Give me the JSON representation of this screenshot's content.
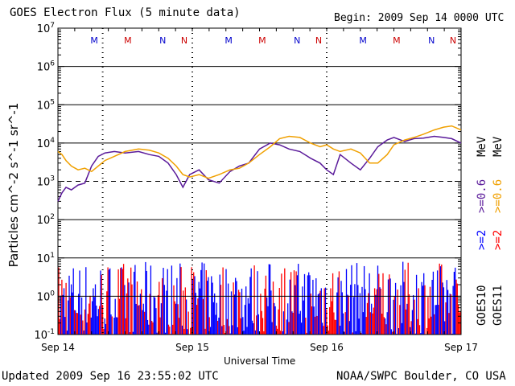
{
  "header": {
    "title": "GOES Electron Flux (5 minute data)",
    "begin": "Begin: 2009 Sep 14 0000 UTC"
  },
  "footer": {
    "updated": "Updated 2009 Sep 16 23:55:02 UTC",
    "source": "NOAA/SWPC Boulder, CO USA"
  },
  "colors": {
    "goes10_2mev": "#0000ff",
    "goes11_2mev": "#ff0000",
    "goes10_06mev": "#5a1a9a",
    "goes11_06mev": "#f0a000",
    "midnight_blue": "#0000cc",
    "midnight_red": "#cc0000"
  },
  "chart_data": {
    "type": "line",
    "title": "GOES Electron Flux (5 minute data)",
    "xlabel": "Universal Time",
    "ylabel": "Particles cm^-2 s^-1 sr^-1",
    "ylim": [
      0.1,
      10000000
    ],
    "yscale": "log",
    "xlim": [
      0,
      3
    ],
    "x_unit": "days since 2009 Sep 14 00:00 UTC",
    "x_ticks": [
      {
        "value": 0,
        "label": "Sep 14"
      },
      {
        "value": 1,
        "label": "Sep 15"
      },
      {
        "value": 2,
        "label": "Sep 16"
      },
      {
        "value": 3,
        "label": "Sep 17"
      }
    ],
    "y_ticks": [
      {
        "value": 0.1,
        "base": "10",
        "exp": "-1"
      },
      {
        "value": 1,
        "base": "10",
        "exp": "0"
      },
      {
        "value": 10,
        "base": "10",
        "exp": "1"
      },
      {
        "value": 100,
        "base": "10",
        "exp": "2"
      },
      {
        "value": 1000,
        "base": "10",
        "exp": "3"
      },
      {
        "value": 10000,
        "base": "10",
        "exp": "4"
      },
      {
        "value": 100000,
        "base": "10",
        "exp": "5"
      },
      {
        "value": 1000000,
        "base": "10",
        "exp": "6"
      },
      {
        "value": 10000000,
        "base": "10",
        "exp": "7"
      }
    ],
    "threshold_line": 1000,
    "day_marks": [
      0.333,
      1.0,
      2.0
    ],
    "local_time_marks": [
      {
        "day": 0.27,
        "label": "M",
        "color": "midnight_blue"
      },
      {
        "day": 0.52,
        "label": "M",
        "color": "midnight_red"
      },
      {
        "day": 0.78,
        "label": "N",
        "color": "midnight_blue"
      },
      {
        "day": 0.94,
        "label": "N",
        "color": "midnight_red"
      },
      {
        "day": 1.27,
        "label": "M",
        "color": "midnight_blue"
      },
      {
        "day": 1.52,
        "label": "M",
        "color": "midnight_red"
      },
      {
        "day": 1.78,
        "label": "N",
        "color": "midnight_blue"
      },
      {
        "day": 1.94,
        "label": "N",
        "color": "midnight_red"
      },
      {
        "day": 2.27,
        "label": "M",
        "color": "midnight_blue"
      },
      {
        "day": 2.52,
        "label": "M",
        "color": "midnight_red"
      },
      {
        "day": 2.78,
        "label": "N",
        "color": "midnight_blue"
      },
      {
        "day": 2.94,
        "label": "N",
        "color": "midnight_red"
      }
    ],
    "legend": [
      {
        "name": "GOES10 >=2 MeV",
        "color": "goes10_2mev"
      },
      {
        "name": "GOES10 >=0.6 MeV",
        "color": "goes10_06mev"
      },
      {
        "name": "GOES11 >=2 MeV",
        "color": "goes11_2mev"
      },
      {
        "name": "GOES11 >=0.6 MeV",
        "color": "goes11_06mev"
      }
    ],
    "legend_text": {
      "goes10": "GOES10",
      "goes11": "GOES11",
      "mev": "MeV",
      "ge2": ">=2",
      "ge06": ">=0.6"
    },
    "series": [
      {
        "name": "GOES10 >=0.6 MeV",
        "color": "goes10_06mev",
        "x": [
          0.0,
          0.03,
          0.06,
          0.1,
          0.15,
          0.2,
          0.25,
          0.3,
          0.35,
          0.42,
          0.5,
          0.6,
          0.68,
          0.75,
          0.82,
          0.88,
          0.93,
          0.98,
          1.05,
          1.12,
          1.2,
          1.28,
          1.35,
          1.42,
          1.5,
          1.58,
          1.65,
          1.72,
          1.8,
          1.88,
          1.95,
          2.0,
          2.05,
          2.1,
          2.18,
          2.25,
          2.32,
          2.38,
          2.45,
          2.5,
          2.58,
          2.65,
          2.72,
          2.8,
          2.87,
          2.93,
          3.0
        ],
        "y": [
          300,
          500,
          700,
          600,
          800,
          900,
          2500,
          4500,
          5500,
          6000,
          5500,
          6000,
          5000,
          4500,
          3000,
          1500,
          700,
          1500,
          2000,
          1100,
          900,
          1800,
          2500,
          3000,
          7000,
          10000,
          9000,
          7000,
          6000,
          4000,
          3000,
          2000,
          1500,
          5000,
          3000,
          2000,
          4000,
          8000,
          12000,
          14000,
          11000,
          13000,
          13500,
          15000,
          14000,
          13000,
          10000
        ]
      },
      {
        "name": "GOES11 >=0.6 MeV",
        "color": "goes11_06mev",
        "x": [
          0.0,
          0.03,
          0.06,
          0.1,
          0.15,
          0.2,
          0.25,
          0.3,
          0.35,
          0.42,
          0.5,
          0.6,
          0.68,
          0.75,
          0.82,
          0.88,
          0.93,
          0.98,
          1.05,
          1.12,
          1.2,
          1.28,
          1.35,
          1.42,
          1.5,
          1.58,
          1.65,
          1.72,
          1.8,
          1.88,
          1.95,
          2.0,
          2.05,
          2.1,
          2.18,
          2.25,
          2.32,
          2.38,
          2.45,
          2.5,
          2.58,
          2.65,
          2.72,
          2.8,
          2.87,
          2.93,
          3.0
        ],
        "y": [
          6000,
          5000,
          3500,
          2500,
          2000,
          2200,
          1800,
          2500,
          3500,
          4500,
          6000,
          7000,
          6500,
          5500,
          4000,
          2500,
          1500,
          1300,
          1500,
          1200,
          1500,
          2000,
          2200,
          3000,
          5000,
          8000,
          13000,
          15000,
          14000,
          10000,
          8000,
          9000,
          7000,
          6000,
          7000,
          5500,
          3000,
          3000,
          5000,
          9000,
          12000,
          14000,
          17000,
          22000,
          26000,
          28000,
          22000
        ]
      }
    ],
    "high_energy_band": {
      "note": ">=2 MeV flux for both spacecraft fluctuates between about 0.1 and 8 across the full period",
      "y_min": 0.1,
      "y_max": 8
    }
  }
}
